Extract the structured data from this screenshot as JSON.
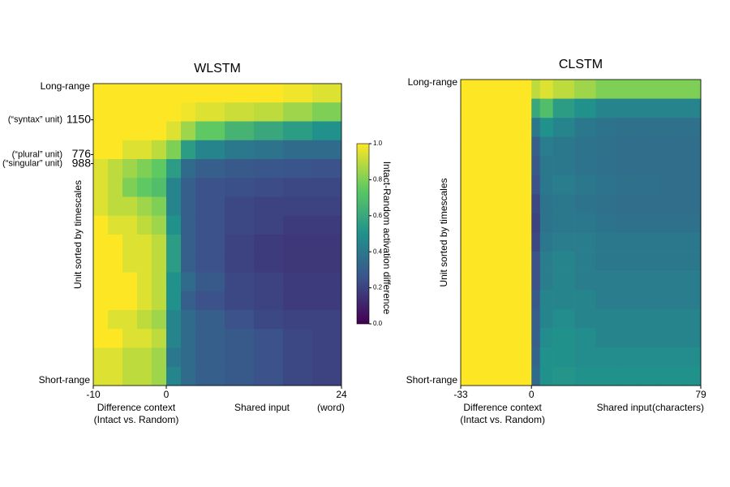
{
  "chart_data": [
    {
      "type": "heatmap",
      "title": "WLSTM",
      "colormap": "viridis",
      "ylabel": "Unit sorted by timescales",
      "y_top_label": "Long-range",
      "y_bottom_label": "Short-range",
      "context_label": "Difference context",
      "context_sublabel": "(Intact vs. Random)",
      "shared_label": "Shared input",
      "x_unit": "(word)",
      "xlim": [
        -10,
        24
      ],
      "xticks": [
        -10,
        0,
        24
      ],
      "unit_annotations": [
        {
          "text": "(“syntax” unit)",
          "unit": "1150"
        },
        {
          "text": "(“plural” unit)",
          "unit": "776"
        },
        {
          "text": "(“singular” unit)",
          "unit": "988"
        }
      ],
      "x_bins": [
        -10,
        -8,
        -6,
        -4,
        -2,
        0,
        2,
        4,
        8,
        12,
        16,
        20,
        24
      ],
      "values": [
        [
          1,
          1,
          1,
          1,
          1,
          1,
          1,
          1,
          1,
          1,
          0.98,
          0.95
        ],
        [
          1,
          1,
          1,
          1,
          1,
          1,
          0.98,
          0.95,
          0.92,
          0.9,
          0.85,
          0.8
        ],
        [
          1,
          1,
          1,
          1,
          1,
          0.95,
          0.85,
          0.75,
          0.65,
          0.6,
          0.55,
          0.5
        ],
        [
          1,
          1,
          0.95,
          0.95,
          0.9,
          0.8,
          0.55,
          0.45,
          0.4,
          0.38,
          0.35,
          0.35
        ],
        [
          0.95,
          0.9,
          0.85,
          0.8,
          0.75,
          0.55,
          0.35,
          0.3,
          0.28,
          0.27,
          0.26,
          0.25
        ],
        [
          0.95,
          0.9,
          0.8,
          0.75,
          0.7,
          0.45,
          0.3,
          0.25,
          0.24,
          0.23,
          0.22,
          0.22
        ],
        [
          0.95,
          0.9,
          0.9,
          0.85,
          0.8,
          0.45,
          0.3,
          0.25,
          0.22,
          0.2,
          0.2,
          0.2
        ],
        [
          1,
          0.95,
          0.95,
          0.9,
          0.85,
          0.5,
          0.3,
          0.25,
          0.22,
          0.2,
          0.18,
          0.18
        ],
        [
          1,
          1,
          0.95,
          0.95,
          0.9,
          0.55,
          0.3,
          0.25,
          0.2,
          0.18,
          0.17,
          0.17
        ],
        [
          1,
          1,
          0.95,
          0.95,
          0.9,
          0.55,
          0.3,
          0.25,
          0.2,
          0.18,
          0.17,
          0.17
        ],
        [
          1,
          1,
          1,
          0.95,
          0.9,
          0.5,
          0.35,
          0.28,
          0.22,
          0.2,
          0.18,
          0.18
        ],
        [
          1,
          1,
          1,
          0.95,
          0.9,
          0.5,
          0.3,
          0.25,
          0.22,
          0.2,
          0.18,
          0.18
        ],
        [
          1,
          0.95,
          0.95,
          0.9,
          0.85,
          0.45,
          0.35,
          0.3,
          0.25,
          0.22,
          0.2,
          0.2
        ],
        [
          1,
          1,
          0.95,
          0.95,
          0.9,
          0.45,
          0.35,
          0.3,
          0.28,
          0.25,
          0.22,
          0.2
        ],
        [
          0.95,
          0.95,
          0.9,
          0.9,
          0.85,
          0.4,
          0.35,
          0.3,
          0.28,
          0.25,
          0.22,
          0.2
        ],
        [
          0.95,
          0.95,
          0.9,
          0.9,
          0.85,
          0.45,
          0.35,
          0.3,
          0.28,
          0.25,
          0.22,
          0.2
        ]
      ],
      "colorbar": {
        "label": "Intact-Random activation difference",
        "lim": [
          0,
          1
        ],
        "ticks": [
          {
            "value": 0,
            "label": "0.0"
          },
          0.2,
          0.4,
          0.6,
          0.8,
          {
            "value": 1,
            "label": "1.0"
          }
        ]
      }
    },
    {
      "type": "heatmap",
      "title": "CLSTM",
      "colormap": "viridis",
      "ylabel": "Unit sorted by timescales",
      "y_top_label": "Long-range",
      "y_bottom_label": "Short-range",
      "context_label": "Difference context",
      "context_sublabel": "(Intact vs. Random)",
      "shared_label": "Shared input",
      "x_unit": "(characters)",
      "xlim": [
        -33,
        79
      ],
      "xticks": [
        -33,
        0,
        79
      ],
      "x_bins": [
        -33,
        -22,
        -11,
        0,
        4,
        10,
        20,
        30,
        40,
        50,
        60,
        70,
        79
      ],
      "values": [
        [
          1,
          1,
          1,
          0.9,
          0.95,
          0.9,
          0.85,
          0.8,
          0.8,
          0.8,
          0.8,
          0.8
        ],
        [
          1,
          1,
          1,
          0.6,
          0.7,
          0.55,
          0.5,
          0.45,
          0.45,
          0.45,
          0.45,
          0.45
        ],
        [
          1,
          1,
          1,
          0.4,
          0.5,
          0.45,
          0.4,
          0.38,
          0.37,
          0.37,
          0.37,
          0.37
        ],
        [
          1,
          1,
          1,
          0.3,
          0.42,
          0.4,
          0.38,
          0.37,
          0.36,
          0.36,
          0.36,
          0.36
        ],
        [
          1,
          1,
          1,
          0.28,
          0.4,
          0.4,
          0.38,
          0.37,
          0.36,
          0.36,
          0.36,
          0.36
        ],
        [
          1,
          1,
          1,
          0.25,
          0.4,
          0.42,
          0.4,
          0.38,
          0.37,
          0.37,
          0.36,
          0.36
        ],
        [
          1,
          1,
          1,
          0.22,
          0.38,
          0.4,
          0.38,
          0.37,
          0.36,
          0.36,
          0.36,
          0.36
        ],
        [
          1,
          1,
          1,
          0.2,
          0.38,
          0.4,
          0.4,
          0.38,
          0.37,
          0.37,
          0.37,
          0.37
        ],
        [
          1,
          1,
          1,
          0.22,
          0.4,
          0.42,
          0.42,
          0.4,
          0.4,
          0.4,
          0.4,
          0.4
        ],
        [
          1,
          1,
          1,
          0.25,
          0.42,
          0.45,
          0.42,
          0.4,
          0.4,
          0.4,
          0.4,
          0.4
        ],
        [
          1,
          1,
          1,
          0.25,
          0.42,
          0.45,
          0.42,
          0.42,
          0.42,
          0.42,
          0.42,
          0.42
        ],
        [
          1,
          1,
          1,
          0.28,
          0.45,
          0.45,
          0.45,
          0.42,
          0.42,
          0.42,
          0.42,
          0.42
        ],
        [
          1,
          1,
          1,
          0.3,
          0.45,
          0.48,
          0.45,
          0.45,
          0.45,
          0.45,
          0.45,
          0.45
        ],
        [
          1,
          1,
          1,
          0.3,
          0.48,
          0.5,
          0.48,
          0.45,
          0.45,
          0.45,
          0.45,
          0.45
        ],
        [
          1,
          1,
          1,
          0.32,
          0.5,
          0.5,
          0.48,
          0.48,
          0.48,
          0.48,
          0.48,
          0.48
        ],
        [
          1,
          1,
          1,
          0.35,
          0.5,
          0.52,
          0.5,
          0.5,
          0.5,
          0.5,
          0.5,
          0.5
        ]
      ]
    }
  ]
}
